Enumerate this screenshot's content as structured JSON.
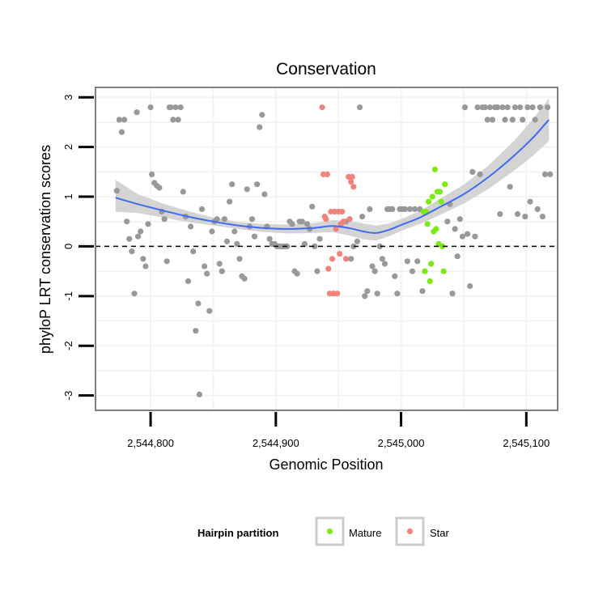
{
  "chart_data": {
    "type": "scatter",
    "title": "Conservation",
    "xlabel": "Genomic Position",
    "ylabel": "phyloP LRT conservation scores",
    "xlim": [
      2544756,
      2545125
    ],
    "ylim": [
      -3.3,
      3.2
    ],
    "x_ticks": [
      2544800,
      2544900,
      2545000,
      2545100
    ],
    "x_tick_labels": [
      "2,544,800",
      "2,544,900",
      "2,545,000",
      "2,545,100"
    ],
    "y_ticks": [
      3,
      2,
      1,
      0,
      -1,
      -2,
      -3
    ],
    "y_tick_labels": [
      "3",
      "2",
      "1",
      "0",
      "-1",
      "-2",
      "-3"
    ],
    "reference_line": {
      "y": 0,
      "style": "dashed"
    },
    "colors": {
      "other": "#999999",
      "mature": "#7CEB13",
      "star": "#F0837A",
      "smooth": "#3F6BF0",
      "ribbon": "#cccccc",
      "panel_border": "#808080",
      "grid": "#f3f3f3"
    },
    "legend": {
      "title": "Hairpin partition",
      "position": "bottom",
      "items": [
        {
          "label": "Mature",
          "color": "#7CEB13"
        },
        {
          "label": "Star",
          "color": "#F0837A"
        }
      ]
    },
    "smooth": {
      "x": [
        2544772,
        2544790,
        2544810,
        2544830,
        2544850,
        2544870,
        2544890,
        2544910,
        2544930,
        2544945,
        2544960,
        2544970,
        2544980,
        2544990,
        2545000,
        2545015,
        2545030,
        2545050,
        2545070,
        2545090,
        2545105,
        2545118
      ],
      "y": [
        0.98,
        0.85,
        0.72,
        0.6,
        0.5,
        0.42,
        0.37,
        0.35,
        0.37,
        0.41,
        0.36,
        0.3,
        0.27,
        0.33,
        0.43,
        0.58,
        0.78,
        1.05,
        1.4,
        1.82,
        2.18,
        2.55
      ],
      "lower": [
        0.7,
        0.67,
        0.58,
        0.49,
        0.42,
        0.35,
        0.29,
        0.26,
        0.27,
        0.29,
        0.21,
        0.14,
        0.12,
        0.2,
        0.31,
        0.45,
        0.62,
        0.86,
        1.16,
        1.52,
        1.82,
        2.12
      ],
      "upper": [
        1.34,
        1.05,
        0.86,
        0.71,
        0.58,
        0.49,
        0.45,
        0.44,
        0.47,
        0.53,
        0.51,
        0.46,
        0.42,
        0.46,
        0.55,
        0.71,
        0.94,
        1.24,
        1.63,
        2.12,
        2.55,
        2.98
      ]
    },
    "series": [
      {
        "name": "Other",
        "points": [
          [
            2544773,
            1.12
          ],
          [
            2544775,
            2.55
          ],
          [
            2544777,
            2.3
          ],
          [
            2544779,
            2.55
          ],
          [
            2544781,
            0.5
          ],
          [
            2544783,
            0.15
          ],
          [
            2544785,
            -0.1
          ],
          [
            2544787,
            -0.95
          ],
          [
            2544789,
            2.7
          ],
          [
            2544790,
            0.2
          ],
          [
            2544792,
            0.3
          ],
          [
            2544794,
            -0.25
          ],
          [
            2544796,
            -0.4
          ],
          [
            2544798,
            0.45
          ],
          [
            2544800,
            2.8
          ],
          [
            2544801,
            1.45
          ],
          [
            2544803,
            1.28
          ],
          [
            2544805,
            1.22
          ],
          [
            2544807,
            1.18
          ],
          [
            2544809,
            0.7
          ],
          [
            2544811,
            0.55
          ],
          [
            2544813,
            -0.3
          ],
          [
            2544815,
            2.8
          ],
          [
            2544816,
            2.8
          ],
          [
            2544818,
            2.55
          ],
          [
            2544820,
            2.8
          ],
          [
            2544822,
            2.55
          ],
          [
            2544824,
            2.8
          ],
          [
            2544826,
            1.1
          ],
          [
            2544828,
            0.6
          ],
          [
            2544830,
            -0.7
          ],
          [
            2544832,
            0.4
          ],
          [
            2544834,
            -0.1
          ],
          [
            2544836,
            -1.7
          ],
          [
            2544838,
            -1.15
          ],
          [
            2544839,
            -2.98
          ],
          [
            2544841,
            0.75
          ],
          [
            2544843,
            -0.4
          ],
          [
            2544845,
            -0.55
          ],
          [
            2544847,
            -1.3
          ],
          [
            2544849,
            0.3
          ],
          [
            2544851,
            0.5
          ],
          [
            2544853,
            0.55
          ],
          [
            2544855,
            -0.35
          ],
          [
            2544857,
            -0.5
          ],
          [
            2544859,
            0.55
          ],
          [
            2544861,
            0.1
          ],
          [
            2544863,
            0.9
          ],
          [
            2544865,
            1.25
          ],
          [
            2544867,
            0.3
          ],
          [
            2544869,
            0.05
          ],
          [
            2544871,
            -0.25
          ],
          [
            2544873,
            -0.6
          ],
          [
            2544875,
            -0.65
          ],
          [
            2544877,
            1.15
          ],
          [
            2544879,
            0.4
          ],
          [
            2544881,
            0.55
          ],
          [
            2544883,
            0.2
          ],
          [
            2544885,
            1.25
          ],
          [
            2544887,
            2.4
          ],
          [
            2544889,
            2.65
          ],
          [
            2544891,
            1.05
          ],
          [
            2544893,
            0.4
          ],
          [
            2544895,
            0.15
          ],
          [
            2544897,
            0.05
          ],
          [
            2544899,
            0.05
          ],
          [
            2544901,
            0.0
          ],
          [
            2544903,
            0.0
          ],
          [
            2544905,
            0.0
          ],
          [
            2544907,
            0.0
          ],
          [
            2544909,
            0.0
          ],
          [
            2544911,
            0.5
          ],
          [
            2544913,
            0.45
          ],
          [
            2544915,
            -0.5
          ],
          [
            2544917,
            -0.55
          ],
          [
            2544919,
            0.5
          ],
          [
            2544921,
            0.5
          ],
          [
            2544923,
            0.05
          ],
          [
            2544925,
            0.45
          ],
          [
            2544927,
            0.35
          ],
          [
            2544929,
            0.8
          ],
          [
            2544931,
            0.0
          ],
          [
            2544933,
            -0.5
          ],
          [
            2544935,
            0.15
          ],
          [
            2544956,
            0.5
          ],
          [
            2544960,
            -0.25
          ],
          [
            2544962,
            0.0
          ],
          [
            2544965,
            0.1
          ],
          [
            2544967,
            2.8
          ],
          [
            2544969,
            0.6
          ],
          [
            2544971,
            -1.0
          ],
          [
            2544973,
            -0.9
          ],
          [
            2544975,
            0.75
          ],
          [
            2544977,
            -0.4
          ],
          [
            2544979,
            -0.5
          ],
          [
            2544981,
            -0.95
          ],
          [
            2544983,
            0.0
          ],
          [
            2544985,
            -0.25
          ],
          [
            2544987,
            -0.35
          ],
          [
            2544989,
            0.75
          ],
          [
            2544991,
            0.75
          ],
          [
            2544993,
            0.75
          ],
          [
            2544995,
            -0.6
          ],
          [
            2544997,
            -0.95
          ],
          [
            2544999,
            0.75
          ],
          [
            2545001,
            0.75
          ],
          [
            2545003,
            0.75
          ],
          [
            2545005,
            -0.3
          ],
          [
            2545007,
            0.75
          ],
          [
            2545009,
            -0.5
          ],
          [
            2545011,
            0.75
          ],
          [
            2545013,
            -0.3
          ],
          [
            2545015,
            0.75
          ],
          [
            2545017,
            -0.9
          ],
          [
            2545037,
            0.5
          ],
          [
            2545039,
            0.85
          ],
          [
            2545041,
            -0.95
          ],
          [
            2545043,
            0.35
          ],
          [
            2545045,
            -0.2
          ],
          [
            2545047,
            0.55
          ],
          [
            2545049,
            0.2
          ],
          [
            2545051,
            2.8
          ],
          [
            2545053,
            0.25
          ],
          [
            2545055,
            -0.8
          ],
          [
            2545057,
            1.5
          ],
          [
            2545059,
            0.2
          ],
          [
            2545061,
            2.8
          ],
          [
            2545063,
            1.45
          ],
          [
            2545065,
            2.8
          ],
          [
            2545067,
            2.8
          ],
          [
            2545069,
            2.55
          ],
          [
            2545071,
            2.8
          ],
          [
            2545073,
            2.55
          ],
          [
            2545075,
            2.8
          ],
          [
            2545077,
            2.8
          ],
          [
            2545079,
            0.65
          ],
          [
            2545081,
            2.8
          ],
          [
            2545083,
            2.55
          ],
          [
            2545085,
            2.8
          ],
          [
            2545087,
            1.2
          ],
          [
            2545089,
            2.55
          ],
          [
            2545091,
            2.8
          ],
          [
            2545093,
            0.65
          ],
          [
            2545095,
            2.8
          ],
          [
            2545097,
            2.55
          ],
          [
            2545099,
            0.6
          ],
          [
            2545101,
            2.8
          ],
          [
            2545103,
            0.9
          ],
          [
            2545105,
            2.8
          ],
          [
            2545107,
            2.55
          ],
          [
            2545109,
            0.75
          ],
          [
            2545111,
            2.8
          ],
          [
            2545113,
            0.6
          ],
          [
            2545115,
            1.45
          ],
          [
            2545117,
            2.8
          ],
          [
            2545119,
            1.45
          ]
        ]
      },
      {
        "name": "Star",
        "points": [
          [
            2544937,
            2.8
          ],
          [
            2544938,
            1.45
          ],
          [
            2544939,
            0.6
          ],
          [
            2544940,
            0.55
          ],
          [
            2544941,
            1.45
          ],
          [
            2544942,
            -0.45
          ],
          [
            2544943,
            -0.95
          ],
          [
            2544944,
            0.7
          ],
          [
            2544945,
            -0.25
          ],
          [
            2544946,
            -0.95
          ],
          [
            2544947,
            0.7
          ],
          [
            2544948,
            0.35
          ],
          [
            2544949,
            -0.95
          ],
          [
            2544950,
            0.7
          ],
          [
            2544951,
            -0.15
          ],
          [
            2544952,
            0.45
          ],
          [
            2544953,
            0.7
          ],
          [
            2544954,
            0.5
          ],
          [
            2544956,
            -0.25
          ],
          [
            2544958,
            1.4
          ],
          [
            2544959,
            0.55
          ],
          [
            2544960,
            1.3
          ],
          [
            2544961,
            1.4
          ],
          [
            2544962,
            1.2
          ]
        ]
      },
      {
        "name": "Mature",
        "points": [
          [
            2545018,
            0.7
          ],
          [
            2545019,
            -0.5
          ],
          [
            2545020,
            0.7
          ],
          [
            2545021,
            0.45
          ],
          [
            2545022,
            0.9
          ],
          [
            2545023,
            -0.7
          ],
          [
            2545024,
            -0.35
          ],
          [
            2545025,
            1.0
          ],
          [
            2545026,
            0.3
          ],
          [
            2545027,
            1.55
          ],
          [
            2545028,
            0.35
          ],
          [
            2545029,
            1.1
          ],
          [
            2545030,
            0.05
          ],
          [
            2545031,
            1.1
          ],
          [
            2545032,
            0.9
          ],
          [
            2545033,
            0.0
          ],
          [
            2545034,
            -0.5
          ],
          [
            2545035,
            1.25
          ]
        ]
      }
    ]
  }
}
